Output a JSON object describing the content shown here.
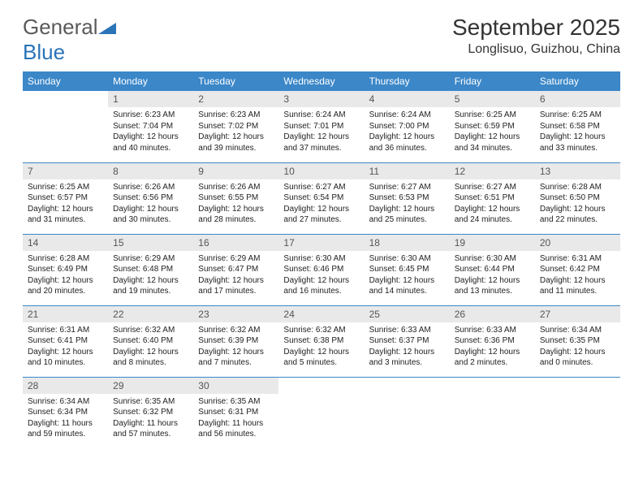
{
  "logo": {
    "part1": "General",
    "part2": "Blue"
  },
  "title": "September 2025",
  "location": "Longlisuo, Guizhou, China",
  "colors": {
    "header_bg": "#3b87c8",
    "header_text": "#ffffff",
    "daynum_bg": "#e9e9e9",
    "daynum_text": "#555555",
    "body_text": "#222222",
    "rule": "#3b87c8",
    "logo_gray": "#5a5a5a",
    "logo_blue": "#2b74b8",
    "page_bg": "#ffffff"
  },
  "fonts": {
    "title_pt": 28,
    "location_pt": 16,
    "weekday_pt": 12,
    "daynum_pt": 12,
    "body_pt": 10
  },
  "weekdays": [
    "Sunday",
    "Monday",
    "Tuesday",
    "Wednesday",
    "Thursday",
    "Friday",
    "Saturday"
  ],
  "weeks": [
    [
      {
        "n": "",
        "sr": "",
        "ss": "",
        "dl": ""
      },
      {
        "n": "1",
        "sr": "6:23 AM",
        "ss": "7:04 PM",
        "dl": "12 hours and 40 minutes."
      },
      {
        "n": "2",
        "sr": "6:23 AM",
        "ss": "7:02 PM",
        "dl": "12 hours and 39 minutes."
      },
      {
        "n": "3",
        "sr": "6:24 AM",
        "ss": "7:01 PM",
        "dl": "12 hours and 37 minutes."
      },
      {
        "n": "4",
        "sr": "6:24 AM",
        "ss": "7:00 PM",
        "dl": "12 hours and 36 minutes."
      },
      {
        "n": "5",
        "sr": "6:25 AM",
        "ss": "6:59 PM",
        "dl": "12 hours and 34 minutes."
      },
      {
        "n": "6",
        "sr": "6:25 AM",
        "ss": "6:58 PM",
        "dl": "12 hours and 33 minutes."
      }
    ],
    [
      {
        "n": "7",
        "sr": "6:25 AM",
        "ss": "6:57 PM",
        "dl": "12 hours and 31 minutes."
      },
      {
        "n": "8",
        "sr": "6:26 AM",
        "ss": "6:56 PM",
        "dl": "12 hours and 30 minutes."
      },
      {
        "n": "9",
        "sr": "6:26 AM",
        "ss": "6:55 PM",
        "dl": "12 hours and 28 minutes."
      },
      {
        "n": "10",
        "sr": "6:27 AM",
        "ss": "6:54 PM",
        "dl": "12 hours and 27 minutes."
      },
      {
        "n": "11",
        "sr": "6:27 AM",
        "ss": "6:53 PM",
        "dl": "12 hours and 25 minutes."
      },
      {
        "n": "12",
        "sr": "6:27 AM",
        "ss": "6:51 PM",
        "dl": "12 hours and 24 minutes."
      },
      {
        "n": "13",
        "sr": "6:28 AM",
        "ss": "6:50 PM",
        "dl": "12 hours and 22 minutes."
      }
    ],
    [
      {
        "n": "14",
        "sr": "6:28 AM",
        "ss": "6:49 PM",
        "dl": "12 hours and 20 minutes."
      },
      {
        "n": "15",
        "sr": "6:29 AM",
        "ss": "6:48 PM",
        "dl": "12 hours and 19 minutes."
      },
      {
        "n": "16",
        "sr": "6:29 AM",
        "ss": "6:47 PM",
        "dl": "12 hours and 17 minutes."
      },
      {
        "n": "17",
        "sr": "6:30 AM",
        "ss": "6:46 PM",
        "dl": "12 hours and 16 minutes."
      },
      {
        "n": "18",
        "sr": "6:30 AM",
        "ss": "6:45 PM",
        "dl": "12 hours and 14 minutes."
      },
      {
        "n": "19",
        "sr": "6:30 AM",
        "ss": "6:44 PM",
        "dl": "12 hours and 13 minutes."
      },
      {
        "n": "20",
        "sr": "6:31 AM",
        "ss": "6:42 PM",
        "dl": "12 hours and 11 minutes."
      }
    ],
    [
      {
        "n": "21",
        "sr": "6:31 AM",
        "ss": "6:41 PM",
        "dl": "12 hours and 10 minutes."
      },
      {
        "n": "22",
        "sr": "6:32 AM",
        "ss": "6:40 PM",
        "dl": "12 hours and 8 minutes."
      },
      {
        "n": "23",
        "sr": "6:32 AM",
        "ss": "6:39 PM",
        "dl": "12 hours and 7 minutes."
      },
      {
        "n": "24",
        "sr": "6:32 AM",
        "ss": "6:38 PM",
        "dl": "12 hours and 5 minutes."
      },
      {
        "n": "25",
        "sr": "6:33 AM",
        "ss": "6:37 PM",
        "dl": "12 hours and 3 minutes."
      },
      {
        "n": "26",
        "sr": "6:33 AM",
        "ss": "6:36 PM",
        "dl": "12 hours and 2 minutes."
      },
      {
        "n": "27",
        "sr": "6:34 AM",
        "ss": "6:35 PM",
        "dl": "12 hours and 0 minutes."
      }
    ],
    [
      {
        "n": "28",
        "sr": "6:34 AM",
        "ss": "6:34 PM",
        "dl": "11 hours and 59 minutes."
      },
      {
        "n": "29",
        "sr": "6:35 AM",
        "ss": "6:32 PM",
        "dl": "11 hours and 57 minutes."
      },
      {
        "n": "30",
        "sr": "6:35 AM",
        "ss": "6:31 PM",
        "dl": "11 hours and 56 minutes."
      },
      {
        "n": "",
        "sr": "",
        "ss": "",
        "dl": ""
      },
      {
        "n": "",
        "sr": "",
        "ss": "",
        "dl": ""
      },
      {
        "n": "",
        "sr": "",
        "ss": "",
        "dl": ""
      },
      {
        "n": "",
        "sr": "",
        "ss": "",
        "dl": ""
      }
    ]
  ],
  "labels": {
    "sunrise": "Sunrise:",
    "sunset": "Sunset:",
    "daylight": "Daylight:"
  }
}
